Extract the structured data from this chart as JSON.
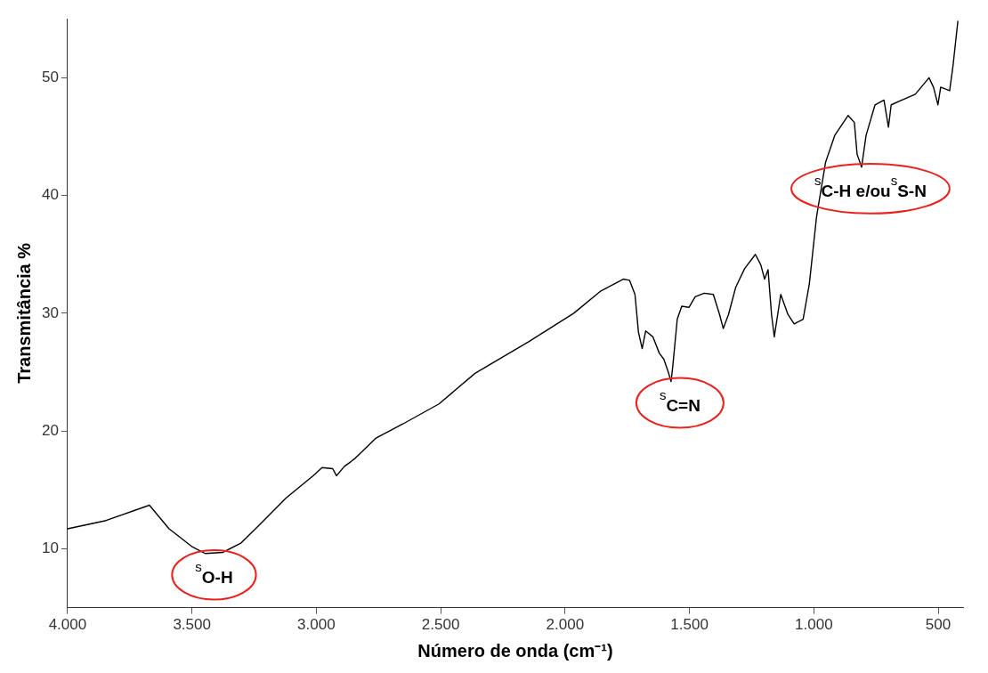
{
  "chart_data": {
    "type": "line",
    "xlabel": "Número de onda (cm⁻¹)",
    "ylabel": "Transmitância %",
    "x": [
      4000,
      3845,
      3671,
      3592,
      3501,
      3447,
      3375,
      3302,
      3230,
      3122,
      3013,
      2977,
      2934,
      2919,
      2887,
      2861,
      2843,
      2760,
      2652,
      2507,
      2362,
      2145,
      1965,
      1856,
      1766,
      1741,
      1719,
      1705,
      1690,
      1676,
      1647,
      1621,
      1603,
      1585,
      1574,
      1567,
      1549,
      1531,
      1502,
      1477,
      1441,
      1404,
      1379,
      1364,
      1343,
      1314,
      1278,
      1235,
      1213,
      1198,
      1184,
      1170,
      1159,
      1133,
      1104,
      1079,
      1043,
      1018,
      989,
      953,
      916,
      862,
      837,
      826,
      808,
      790,
      754,
      718,
      700,
      689,
      646,
      592,
      537,
      519,
      501,
      490,
      454,
      440,
      421
    ],
    "series": [
      {
        "color": "#000000",
        "values": [
          11.7,
          12.4,
          13.7,
          11.7,
          10.2,
          9.6,
          9.7,
          10.5,
          12.0,
          14.3,
          16.2,
          16.9,
          16.8,
          16.2,
          17.0,
          17.4,
          17.7,
          19.4,
          20.6,
          22.3,
          24.9,
          27.6,
          30.0,
          31.9,
          32.9,
          32.8,
          31.6,
          28.4,
          27.0,
          28.5,
          28.0,
          26.6,
          26.1,
          25.0,
          24.2,
          25.5,
          29.5,
          30.6,
          30.5,
          31.4,
          31.7,
          31.6,
          29.9,
          28.7,
          29.9,
          32.2,
          33.8,
          35.0,
          34.1,
          32.9,
          33.7,
          29.9,
          28.0,
          31.6,
          29.9,
          29.1,
          29.5,
          32.5,
          38.2,
          42.8,
          45.1,
          46.8,
          46.2,
          43.5,
          42.4,
          45.1,
          47.7,
          48.1,
          45.8,
          47.7,
          48.1,
          48.6,
          50.0,
          49.2,
          47.7,
          49.2,
          48.9,
          51.1,
          54.8
        ]
      }
    ],
    "xlim": [
      4000,
      400
    ],
    "ylim": [
      5,
      55
    ],
    "xticks": [
      {
        "value": 4000,
        "label": "4.000"
      },
      {
        "value": 3500,
        "label": "3.500"
      },
      {
        "value": 3000,
        "label": "3.000"
      },
      {
        "value": 2500,
        "label": "2.500"
      },
      {
        "value": 2000,
        "label": "2.000"
      },
      {
        "value": 1500,
        "label": "1.500"
      },
      {
        "value": 1000,
        "label": "1.000"
      },
      500
    ],
    "yticks": [
      10,
      20,
      30,
      40,
      50
    ],
    "annotations": [
      {
        "text": "$^{s}$O-H",
        "x": 3447,
        "y": 9.6
      },
      {
        "text": "$^{s}$C=N",
        "x": 1574,
        "y": 24.2
      },
      {
        "text": "$^{s}$C-H e/ou$^{s}$S-N",
        "x": 808,
        "y": 42.4
      }
    ]
  }
}
